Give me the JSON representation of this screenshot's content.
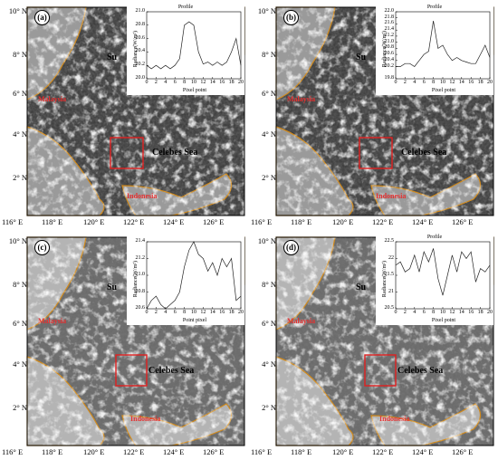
{
  "panels": [
    {
      "label": "(a)",
      "malaysia": "Malaysia",
      "indonesia": "Indonesia",
      "sea": "Celebes Sea",
      "su": "Su",
      "lat_ticks": [
        "10° N",
        "8° N",
        "6° N",
        "4° N",
        "2° N"
      ],
      "lon_ticks": [
        "116° E",
        "118° E",
        "120° E",
        "122° E",
        "124° E",
        "126° E"
      ],
      "inset_title": "Profile",
      "inset_xlabel": "Pixel point",
      "inset_ylabel": "Radiance(W/m²)",
      "chart_data": {
        "type": "line",
        "x": [
          0,
          1,
          2,
          3,
          4,
          5,
          6,
          7,
          8,
          9,
          10,
          11,
          12,
          13,
          14,
          15,
          16,
          17,
          18,
          19,
          20
        ],
        "values": [
          20.2,
          20.15,
          20.2,
          20.15,
          20.2,
          20.15,
          20.2,
          20.3,
          20.8,
          20.85,
          20.8,
          20.4,
          20.22,
          20.25,
          20.2,
          20.25,
          20.2,
          20.25,
          20.4,
          20.6,
          20.2
        ],
        "ylim": [
          20.0,
          21.0
        ],
        "yticks": [
          "20.0",
          "20.2",
          "20.4",
          "20.6",
          "20.8",
          "21.0"
        ],
        "xticks": [
          "0",
          "2",
          "4",
          "6",
          "8",
          "10",
          "12",
          "14",
          "16",
          "18",
          "20"
        ]
      }
    },
    {
      "label": "(b)",
      "malaysia": "Malaysia",
      "indonesia": "Indonesia",
      "sea": "Celebes Sea",
      "su": "Su",
      "lat_ticks": [
        "10° N",
        "8° N",
        "6° N",
        "4° N",
        "2° N"
      ],
      "lon_ticks": [
        "116° E",
        "118° E",
        "120° E",
        "122° E",
        "124° E",
        "126° E"
      ],
      "inset_title": "Profile",
      "inset_xlabel": "Pixel point",
      "inset_ylabel": "Radiance(W/m²)",
      "chart_data": {
        "type": "line",
        "x": [
          0,
          1,
          2,
          3,
          4,
          5,
          6,
          7,
          8,
          9,
          10,
          11,
          12,
          13,
          14,
          15,
          16,
          17,
          18,
          19,
          20
        ],
        "values": [
          20.2,
          20.2,
          20.3,
          20.3,
          20.2,
          20.4,
          20.6,
          20.7,
          21.7,
          20.8,
          20.9,
          20.6,
          20.4,
          20.5,
          20.4,
          20.35,
          20.3,
          20.3,
          20.6,
          20.9,
          20.5
        ],
        "ylim": [
          19.8,
          22.0
        ],
        "yticks": [
          "19.8",
          "20.2",
          "20.4",
          "20.6",
          "20.8",
          "21.0",
          "21.2",
          "21.4",
          "21.6",
          "21.8",
          "22.0"
        ],
        "xticks": [
          "0",
          "2",
          "4",
          "6",
          "8",
          "10",
          "12",
          "14",
          "16",
          "18",
          "20"
        ]
      }
    },
    {
      "label": "(c)",
      "malaysia": "Malaysia",
      "indonesia": "Indonesia",
      "sea": "Celebes Sea",
      "su": "Su",
      "lat_ticks": [
        "10° N",
        "8° N",
        "6° N",
        "4° N",
        "2° N"
      ],
      "lon_ticks": [
        "116° E",
        "118° E",
        "120° E",
        "122° E",
        "124° E",
        "126° E"
      ],
      "inset_title": "",
      "inset_xlabel": "Point pixel",
      "inset_ylabel": "Radiance(W/m²)",
      "chart_data": {
        "type": "line",
        "x": [
          0,
          1,
          2,
          3,
          4,
          5,
          6,
          7,
          8,
          9,
          10,
          11,
          12,
          13,
          14,
          15,
          16,
          17,
          18,
          19,
          20
        ],
        "values": [
          20.6,
          20.7,
          20.75,
          20.65,
          20.6,
          20.65,
          20.7,
          20.8,
          21.1,
          21.3,
          21.4,
          21.25,
          21.2,
          21.05,
          21.15,
          21.0,
          21.2,
          21.1,
          21.2,
          20.7,
          20.75
        ],
        "ylim": [
          20.6,
          21.4
        ],
        "yticks": [
          "20.6",
          "20.8",
          "21.0",
          "21.2",
          "21.4"
        ],
        "xticks": [
          "0",
          "2",
          "4",
          "6",
          "8",
          "10",
          "12",
          "14",
          "16",
          "18",
          "20"
        ]
      }
    },
    {
      "label": "(d)",
      "malaysia": "Malaysia",
      "indonesia": "Indonesia",
      "sea": "Celebes Sea",
      "su": "Su",
      "lat_ticks": [
        "10° N",
        "8° N",
        "6° N",
        "4° N",
        "2° N"
      ],
      "lon_ticks": [
        "116° E",
        "118° E",
        "120° E",
        "122° E",
        "124° E",
        "126° E"
      ],
      "inset_title": "Profile",
      "inset_xlabel": "Pixel point",
      "inset_ylabel": "Radiance(W/m²)",
      "chart_data": {
        "type": "line",
        "x": [
          0,
          1,
          2,
          3,
          4,
          5,
          6,
          7,
          8,
          9,
          10,
          11,
          12,
          13,
          14,
          15,
          16,
          17,
          18,
          19,
          20
        ],
        "values": [
          21.8,
          21.9,
          21.6,
          21.7,
          22.1,
          21.6,
          22.2,
          21.9,
          22.3,
          21.4,
          20.9,
          21.5,
          22.1,
          21.6,
          22.2,
          22.0,
          22.2,
          21.3,
          21.7,
          21.6,
          21.8
        ],
        "ylim": [
          20.5,
          22.5
        ],
        "yticks": [
          "20.5",
          "21",
          "21.5",
          "22",
          "22.5"
        ],
        "xticks": [
          "0",
          "2",
          "4",
          "6",
          "8",
          "10",
          "12",
          "14",
          "16",
          "18",
          "20"
        ]
      }
    }
  ]
}
